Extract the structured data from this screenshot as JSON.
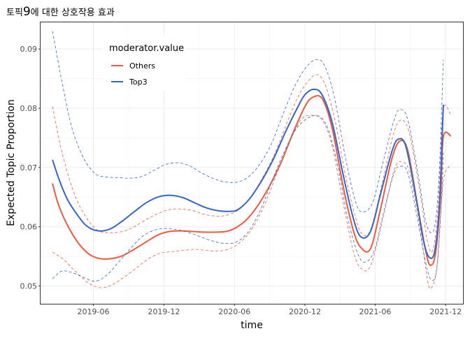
{
  "chart_data": {
    "type": "line",
    "title": {
      "before": "토픽",
      "number": "9",
      "after": "에 대한 상호작용 효과"
    },
    "xlabel": "time",
    "ylabel": "Expected Topic Proportion",
    "x_unit": "date",
    "xlim": [
      "2019-01-15",
      "2022-01-15"
    ],
    "ylim": [
      0.047,
      0.0945
    ],
    "x_ticks": [
      {
        "value": "2019-06-01",
        "label": "2019-06"
      },
      {
        "value": "2019-12-01",
        "label": "2019-12"
      },
      {
        "value": "2020-06-01",
        "label": "2020-06"
      },
      {
        "value": "2020-12-01",
        "label": "2020-12"
      },
      {
        "value": "2021-06-01",
        "label": "2021-06"
      },
      {
        "value": "2021-12-01",
        "label": "2021-12"
      }
    ],
    "y_ticks": [
      {
        "value": 0.05,
        "label": "0.05"
      },
      {
        "value": 0.06,
        "label": "0.06"
      },
      {
        "value": 0.07,
        "label": "0.07"
      },
      {
        "value": 0.08,
        "label": "0.08"
      },
      {
        "value": 0.09,
        "label": "0.09"
      }
    ],
    "grid": true,
    "legend": {
      "title": "moderator.value",
      "position": "top-left"
    },
    "series": [
      {
        "name": "Others",
        "color": "#ef5a3c",
        "estimate": [
          [
            "2019-02-15",
            0.0673
          ],
          [
            "2019-03-01",
            0.064
          ],
          [
            "2019-03-20",
            0.061
          ],
          [
            "2019-04-10",
            0.0585
          ],
          [
            "2019-05-01",
            0.0566
          ],
          [
            "2019-05-25",
            0.0552
          ],
          [
            "2019-06-20",
            0.0546
          ],
          [
            "2019-07-15",
            0.0546
          ],
          [
            "2019-08-15",
            0.0551
          ],
          [
            "2019-09-15",
            0.0562
          ],
          [
            "2019-10-15",
            0.0574
          ],
          [
            "2019-11-15",
            0.0586
          ],
          [
            "2019-12-15",
            0.0592
          ],
          [
            "2020-01-15",
            0.0593
          ],
          [
            "2020-02-15",
            0.0592
          ],
          [
            "2020-03-15",
            0.0591
          ],
          [
            "2020-04-15",
            0.0591
          ],
          [
            "2020-05-10",
            0.0592
          ],
          [
            "2020-06-01",
            0.0597
          ],
          [
            "2020-07-01",
            0.0611
          ],
          [
            "2020-08-01",
            0.0636
          ],
          [
            "2020-09-01",
            0.067
          ],
          [
            "2020-10-01",
            0.071
          ],
          [
            "2020-11-01",
            0.076
          ],
          [
            "2020-12-01",
            0.0803
          ],
          [
            "2020-12-20",
            0.0818
          ],
          [
            "2021-01-15",
            0.0816
          ],
          [
            "2021-02-10",
            0.0765
          ],
          [
            "2021-03-10",
            0.0668
          ],
          [
            "2021-04-05",
            0.0595
          ],
          [
            "2021-04-25",
            0.0565
          ],
          [
            "2021-05-20",
            0.0563
          ],
          [
            "2021-06-15",
            0.063
          ],
          [
            "2021-07-15",
            0.0716
          ],
          [
            "2021-08-05",
            0.0745
          ],
          [
            "2021-08-25",
            0.0728
          ],
          [
            "2021-09-20",
            0.0632
          ],
          [
            "2021-10-10",
            0.056
          ],
          [
            "2021-10-22",
            0.0535
          ],
          [
            "2021-11-05",
            0.0556
          ],
          [
            "2021-11-18",
            0.0653
          ],
          [
            "2021-11-25",
            0.0752
          ],
          [
            "2021-12-15",
            0.0753
          ]
        ],
        "upper": [
          [
            "2019-02-15",
            0.0803
          ],
          [
            "2019-03-10",
            0.073
          ],
          [
            "2019-04-10",
            0.066
          ],
          [
            "2019-05-10",
            0.0619
          ],
          [
            "2019-06-10",
            0.0595
          ],
          [
            "2019-07-10",
            0.059
          ],
          [
            "2019-08-15",
            0.0592
          ],
          [
            "2019-09-15",
            0.06
          ],
          [
            "2019-10-15",
            0.0612
          ],
          [
            "2019-11-15",
            0.0622
          ],
          [
            "2019-12-15",
            0.0629
          ],
          [
            "2020-01-15",
            0.063
          ],
          [
            "2020-02-15",
            0.0627
          ],
          [
            "2020-03-15",
            0.0621
          ],
          [
            "2020-04-15",
            0.0618
          ],
          [
            "2020-05-15",
            0.062
          ],
          [
            "2020-06-15",
            0.063
          ],
          [
            "2020-07-15",
            0.0652
          ],
          [
            "2020-08-15",
            0.0685
          ],
          [
            "2020-09-15",
            0.0725
          ],
          [
            "2020-10-15",
            0.0775
          ],
          [
            "2020-11-15",
            0.0822
          ],
          [
            "2020-12-15",
            0.085
          ],
          [
            "2021-01-05",
            0.0856
          ],
          [
            "2021-01-25",
            0.0835
          ],
          [
            "2021-02-20",
            0.077
          ],
          [
            "2021-03-15",
            0.069
          ],
          [
            "2021-04-10",
            0.0618
          ],
          [
            "2021-04-28",
            0.0588
          ],
          [
            "2021-05-20",
            0.0595
          ],
          [
            "2021-06-20",
            0.0675
          ],
          [
            "2021-07-20",
            0.076
          ],
          [
            "2021-08-10",
            0.078
          ],
          [
            "2021-08-30",
            0.0755
          ],
          [
            "2021-09-25",
            0.066
          ],
          [
            "2021-10-15",
            0.0575
          ],
          [
            "2021-10-28",
            0.056
          ],
          [
            "2021-11-10",
            0.062
          ],
          [
            "2021-11-20",
            0.076
          ],
          [
            "2021-11-28",
            0.0805
          ],
          [
            "2021-12-15",
            0.0788
          ]
        ],
        "lower": [
          [
            "2019-02-15",
            0.0557
          ],
          [
            "2019-03-15",
            0.0545
          ],
          [
            "2019-04-15",
            0.0525
          ],
          [
            "2019-05-20",
            0.0505
          ],
          [
            "2019-06-20",
            0.0497
          ],
          [
            "2019-07-20",
            0.0502
          ],
          [
            "2019-08-20",
            0.0515
          ],
          [
            "2019-09-20",
            0.053
          ],
          [
            "2019-10-20",
            0.0545
          ],
          [
            "2019-11-20",
            0.0555
          ],
          [
            "2019-12-20",
            0.0558
          ],
          [
            "2020-01-20",
            0.056
          ],
          [
            "2020-02-20",
            0.0562
          ],
          [
            "2020-03-20",
            0.056
          ],
          [
            "2020-04-20",
            0.0559
          ],
          [
            "2020-05-20",
            0.0563
          ],
          [
            "2020-06-20",
            0.0576
          ],
          [
            "2020-07-20",
            0.06
          ],
          [
            "2020-08-20",
            0.064
          ],
          [
            "2020-09-20",
            0.0692
          ],
          [
            "2020-10-20",
            0.074
          ],
          [
            "2020-11-20",
            0.078
          ],
          [
            "2020-12-15",
            0.0788
          ],
          [
            "2021-01-15",
            0.078
          ],
          [
            "2021-02-10",
            0.0735
          ],
          [
            "2021-03-10",
            0.064
          ],
          [
            "2021-04-05",
            0.056
          ],
          [
            "2021-04-25",
            0.053
          ],
          [
            "2021-05-20",
            0.0534
          ],
          [
            "2021-06-20",
            0.061
          ],
          [
            "2021-07-20",
            0.0695
          ],
          [
            "2021-08-10",
            0.071
          ],
          [
            "2021-08-30",
            0.069
          ],
          [
            "2021-09-25",
            0.06
          ],
          [
            "2021-10-15",
            0.051
          ],
          [
            "2021-10-25",
            0.0497
          ],
          [
            "2021-11-08",
            0.053
          ],
          [
            "2021-11-20",
            0.064
          ],
          [
            "2021-11-28",
            0.0688
          ],
          [
            "2021-12-15",
            0.0705
          ]
        ]
      },
      {
        "name": "Top3",
        "color": "#3366cc",
        "estimate": [
          [
            "2019-02-15",
            0.0713
          ],
          [
            "2019-03-05",
            0.0678
          ],
          [
            "2019-03-25",
            0.0647
          ],
          [
            "2019-04-15",
            0.0625
          ],
          [
            "2019-05-10",
            0.0604
          ],
          [
            "2019-06-01",
            0.0595
          ],
          [
            "2019-06-25",
            0.0593
          ],
          [
            "2019-07-20",
            0.0598
          ],
          [
            "2019-08-20",
            0.0612
          ],
          [
            "2019-09-20",
            0.0628
          ],
          [
            "2019-10-20",
            0.0642
          ],
          [
            "2019-11-20",
            0.0651
          ],
          [
            "2019-12-20",
            0.0653
          ],
          [
            "2020-01-20",
            0.0649
          ],
          [
            "2020-02-20",
            0.064
          ],
          [
            "2020-03-20",
            0.0632
          ],
          [
            "2020-04-20",
            0.0627
          ],
          [
            "2020-05-20",
            0.0626
          ],
          [
            "2020-06-10",
            0.0629
          ],
          [
            "2020-07-10",
            0.0647
          ],
          [
            "2020-08-10",
            0.0677
          ],
          [
            "2020-09-10",
            0.0714
          ],
          [
            "2020-10-10",
            0.0758
          ],
          [
            "2020-11-10",
            0.0799
          ],
          [
            "2020-12-01",
            0.0823
          ],
          [
            "2020-12-25",
            0.0832
          ],
          [
            "2021-01-15",
            0.0822
          ],
          [
            "2021-02-10",
            0.0775
          ],
          [
            "2021-03-10",
            0.0688
          ],
          [
            "2021-04-05",
            0.0615
          ],
          [
            "2021-04-25",
            0.0583
          ],
          [
            "2021-05-20",
            0.0592
          ],
          [
            "2021-06-15",
            0.0655
          ],
          [
            "2021-07-15",
            0.0728
          ],
          [
            "2021-08-01",
            0.0748
          ],
          [
            "2021-08-20",
            0.0735
          ],
          [
            "2021-09-15",
            0.065
          ],
          [
            "2021-10-05",
            0.0575
          ],
          [
            "2021-10-20",
            0.0548
          ],
          [
            "2021-11-03",
            0.056
          ],
          [
            "2021-11-15",
            0.064
          ],
          [
            "2021-11-25",
            0.0806
          ]
        ],
        "upper": [
          [
            "2019-02-15",
            0.093
          ],
          [
            "2019-03-10",
            0.085
          ],
          [
            "2019-04-05",
            0.077
          ],
          [
            "2019-05-05",
            0.0718
          ],
          [
            "2019-06-05",
            0.069
          ],
          [
            "2019-07-05",
            0.0684
          ],
          [
            "2019-08-05",
            0.0683
          ],
          [
            "2019-09-05",
            0.0682
          ],
          [
            "2019-10-05",
            0.0685
          ],
          [
            "2019-11-05",
            0.0695
          ],
          [
            "2019-12-05",
            0.0705
          ],
          [
            "2020-01-05",
            0.0708
          ],
          [
            "2020-02-05",
            0.0703
          ],
          [
            "2020-03-05",
            0.0692
          ],
          [
            "2020-04-05",
            0.0682
          ],
          [
            "2020-05-05",
            0.0676
          ],
          [
            "2020-06-05",
            0.0675
          ],
          [
            "2020-07-05",
            0.0683
          ],
          [
            "2020-08-05",
            0.0705
          ],
          [
            "2020-09-05",
            0.074
          ],
          [
            "2020-10-05",
            0.079
          ],
          [
            "2020-11-05",
            0.0838
          ],
          [
            "2020-12-05",
            0.087
          ],
          [
            "2020-12-30",
            0.0882
          ],
          [
            "2021-01-20",
            0.0873
          ],
          [
            "2021-02-15",
            0.082
          ],
          [
            "2021-03-15",
            0.072
          ],
          [
            "2021-04-10",
            0.0645
          ],
          [
            "2021-04-28",
            0.0625
          ],
          [
            "2021-05-25",
            0.064
          ],
          [
            "2021-06-20",
            0.0705
          ],
          [
            "2021-07-20",
            0.078
          ],
          [
            "2021-08-05",
            0.0798
          ],
          [
            "2021-08-25",
            0.078
          ],
          [
            "2021-09-20",
            0.069
          ],
          [
            "2021-10-10",
            0.061
          ],
          [
            "2021-10-25",
            0.059
          ],
          [
            "2021-11-05",
            0.061
          ],
          [
            "2021-11-15",
            0.07
          ],
          [
            "2021-11-25",
            0.0882
          ]
        ],
        "lower": [
          [
            "2019-02-15",
            0.0512
          ],
          [
            "2019-03-10",
            0.0525
          ],
          [
            "2019-04-05",
            0.0523
          ],
          [
            "2019-05-05",
            0.0515
          ],
          [
            "2019-06-05",
            0.0508
          ],
          [
            "2019-07-05",
            0.0518
          ],
          [
            "2019-08-05",
            0.054
          ],
          [
            "2019-09-05",
            0.0563
          ],
          [
            "2019-10-05",
            0.0583
          ],
          [
            "2019-11-05",
            0.0594
          ],
          [
            "2019-12-05",
            0.0597
          ],
          [
            "2020-01-05",
            0.0595
          ],
          [
            "2020-02-05",
            0.059
          ],
          [
            "2020-03-05",
            0.0583
          ],
          [
            "2020-04-05",
            0.0576
          ],
          [
            "2020-05-05",
            0.0572
          ],
          [
            "2020-06-05",
            0.0574
          ],
          [
            "2020-07-05",
            0.059
          ],
          [
            "2020-08-05",
            0.0625
          ],
          [
            "2020-09-05",
            0.0675
          ],
          [
            "2020-10-05",
            0.0722
          ],
          [
            "2020-11-05",
            0.0762
          ],
          [
            "2020-12-05",
            0.0782
          ],
          [
            "2021-01-05",
            0.0787
          ],
          [
            "2021-01-30",
            0.0765
          ],
          [
            "2021-02-25",
            0.07
          ],
          [
            "2021-03-20",
            0.062
          ],
          [
            "2021-04-15",
            0.0558
          ],
          [
            "2021-05-05",
            0.054
          ],
          [
            "2021-05-30",
            0.056
          ],
          [
            "2021-06-25",
            0.063
          ],
          [
            "2021-07-20",
            0.069
          ],
          [
            "2021-08-05",
            0.0702
          ],
          [
            "2021-08-25",
            0.069
          ],
          [
            "2021-09-20",
            0.061
          ],
          [
            "2021-10-10",
            0.054
          ],
          [
            "2021-10-25",
            0.051
          ],
          [
            "2021-11-08",
            0.053
          ],
          [
            "2021-11-20",
            0.064
          ],
          [
            "2021-11-25",
            0.0725
          ]
        ]
      }
    ]
  }
}
